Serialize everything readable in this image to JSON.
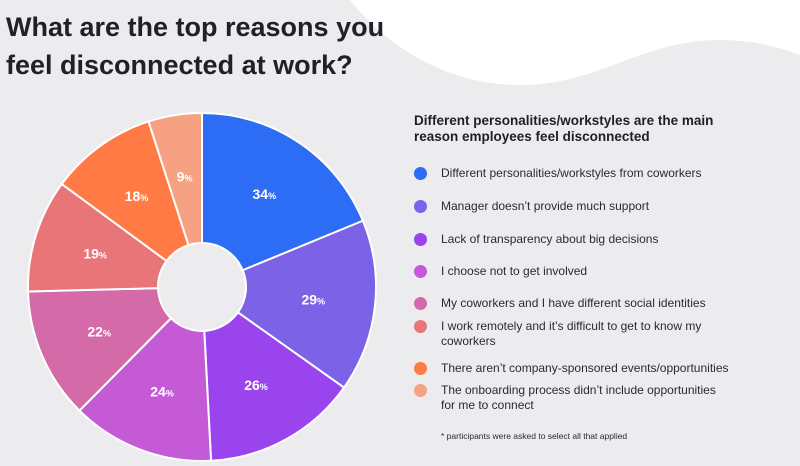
{
  "title_lines": [
    "What are the top reasons you",
    "feel disconnected at work?"
  ],
  "chart_data": {
    "type": "pie",
    "variant": "donut",
    "title": "What are the top reasons you feel disconnected at work?",
    "subtitle": "Different personalities/workstyles are the main reason employees feel disconnected",
    "unit": "%",
    "categories": [
      "Different personalities/workstyles from coworkers",
      "Manager doesn’t provide much support",
      "Lack of transparency about big decisions",
      "I choose not to get involved",
      "My coworkers and I have different social identities",
      "I work remotely and it’s difficult to get to know my coworkers",
      "There aren’t company-sponsored events/opportunities",
      "The onboarding process didn’t include opportunities for me to connect"
    ],
    "legend_lines": [
      [
        "Different personalities/workstyles from coworkers"
      ],
      [
        "Manager doesn’t provide much support"
      ],
      [
        "Lack of transparency about big decisions"
      ],
      [
        "I choose not to get involved"
      ],
      [
        "My coworkers and I have different social identities"
      ],
      [
        "I work remotely and it’s difficult to get to know my",
        "coworkers"
      ],
      [
        "There aren’t company-sponsored events/opportunities"
      ],
      [
        "The onboarding process didn’t include opportunities",
        "for me to connect"
      ]
    ],
    "values": [
      34,
      29,
      26,
      24,
      22,
      19,
      18,
      9
    ],
    "colors": [
      "#2d6cf5",
      "#7b62e6",
      "#9a44ee",
      "#c45ad6",
      "#d56aa9",
      "#e87578",
      "#ff7a45",
      "#f7a183"
    ],
    "legend_position": "right",
    "footnote": "* participants were asked to select all that applied"
  }
}
